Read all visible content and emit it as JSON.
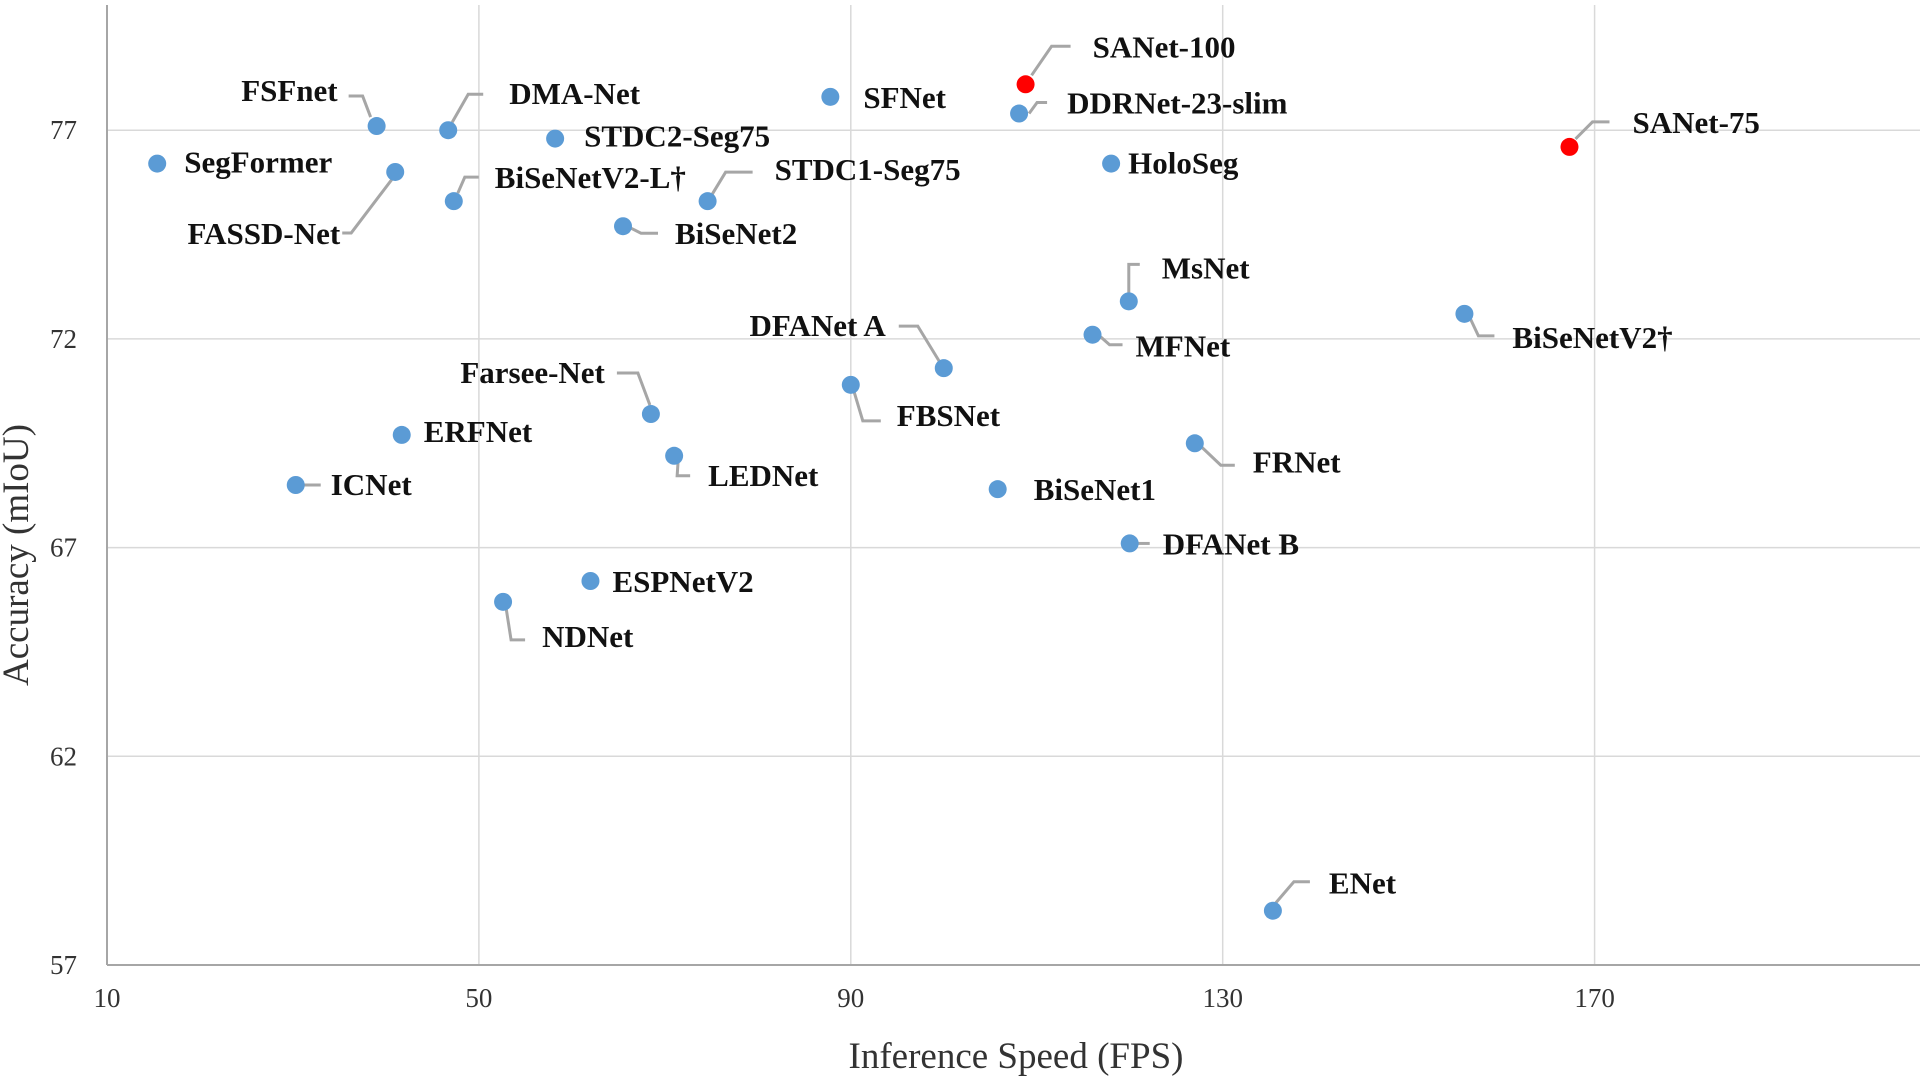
{
  "chart_data": {
    "type": "scatter",
    "xlabel": "Inference Speed (FPS)",
    "ylabel": "Accuracy (mIoU)",
    "xlim": [
      10,
      205
    ],
    "ylim": [
      57,
      80
    ],
    "xticks": [
      10,
      50,
      90,
      130,
      170
    ],
    "yticks": [
      57,
      62,
      67,
      72,
      77
    ],
    "grid": true,
    "colors": {
      "default": "#5b9bd5",
      "highlight": "#ff0000"
    },
    "points": [
      {
        "label": "SegFormer",
        "x": 15.4,
        "y": 76.2,
        "highlight": false
      },
      {
        "label": "FSFnet",
        "x": 39.0,
        "y": 77.1,
        "highlight": false
      },
      {
        "label": "FASSD-Net",
        "x": 41.0,
        "y": 76.0,
        "highlight": false
      },
      {
        "label": "DMA-Net",
        "x": 46.7,
        "y": 77.0,
        "highlight": false
      },
      {
        "label": "BiSeNetV2-L†",
        "x": 47.3,
        "y": 75.3,
        "highlight": false
      },
      {
        "label": "STDC2-Seg75",
        "x": 58.2,
        "y": 76.8,
        "highlight": false
      },
      {
        "label": "BiSeNet2",
        "x": 65.5,
        "y": 74.7,
        "highlight": false
      },
      {
        "label": "STDC1-Seg75",
        "x": 74.6,
        "y": 75.3,
        "highlight": false
      },
      {
        "label": "SFNet",
        "x": 87.8,
        "y": 77.8,
        "highlight": false
      },
      {
        "label": "SANet-100",
        "x": 108.8,
        "y": 78.1,
        "highlight": true
      },
      {
        "label": "DDRNet-23-slim",
        "x": 108.1,
        "y": 77.4,
        "highlight": false
      },
      {
        "label": "HoloSeg",
        "x": 118.0,
        "y": 76.2,
        "highlight": false
      },
      {
        "label": "SANet-75",
        "x": 167.3,
        "y": 76.6,
        "highlight": true
      },
      {
        "label": "MsNet",
        "x": 119.9,
        "y": 72.9,
        "highlight": false
      },
      {
        "label": "MFNet",
        "x": 116.0,
        "y": 72.1,
        "highlight": false
      },
      {
        "label": "BiSeNetV2†",
        "x": 156.0,
        "y": 72.6,
        "highlight": false
      },
      {
        "label": "DFANet A",
        "x": 100.0,
        "y": 71.3,
        "highlight": false
      },
      {
        "label": "FBSNet",
        "x": 90.0,
        "y": 70.9,
        "highlight": false
      },
      {
        "label": "FRNet",
        "x": 127.0,
        "y": 69.5,
        "highlight": false
      },
      {
        "label": "Farsee-Net",
        "x": 68.5,
        "y": 70.2,
        "highlight": false
      },
      {
        "label": "ERFNet",
        "x": 41.7,
        "y": 69.7,
        "highlight": false
      },
      {
        "label": "LEDNet",
        "x": 71.0,
        "y": 69.2,
        "highlight": false
      },
      {
        "label": "ICNet",
        "x": 30.3,
        "y": 68.5,
        "highlight": false
      },
      {
        "label": "BiSeNet1",
        "x": 105.8,
        "y": 68.4,
        "highlight": false
      },
      {
        "label": "DFANet B",
        "x": 120.0,
        "y": 67.1,
        "highlight": false
      },
      {
        "label": "ESPNetV2",
        "x": 62.0,
        "y": 66.2,
        "highlight": false
      },
      {
        "label": "NDNet",
        "x": 52.6,
        "y": 65.7,
        "highlight": false
      },
      {
        "label": "ENet",
        "x": 135.4,
        "y": 58.3,
        "highlight": false
      }
    ]
  }
}
